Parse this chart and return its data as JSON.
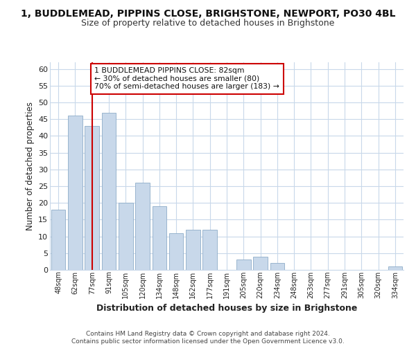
{
  "title": "1, BUDDLEMEAD, PIPPINS CLOSE, BRIGHSTONE, NEWPORT, PO30 4BL",
  "subtitle": "Size of property relative to detached houses in Brighstone",
  "xlabel": "Distribution of detached houses by size in Brighstone",
  "ylabel": "Number of detached properties",
  "bar_color": "#c8d8ea",
  "bar_edgecolor": "#8eacc8",
  "grid_color": "#c8d8ea",
  "bins": [
    "48sqm",
    "62sqm",
    "77sqm",
    "91sqm",
    "105sqm",
    "120sqm",
    "134sqm",
    "148sqm",
    "162sqm",
    "177sqm",
    "191sqm",
    "205sqm",
    "220sqm",
    "234sqm",
    "248sqm",
    "263sqm",
    "277sqm",
    "291sqm",
    "305sqm",
    "320sqm",
    "334sqm"
  ],
  "values": [
    18,
    46,
    43,
    47,
    20,
    26,
    19,
    11,
    12,
    12,
    0,
    3,
    4,
    2,
    0,
    0,
    0,
    0,
    0,
    0,
    1
  ],
  "vline_x": 2,
  "vline_color": "#cc0000",
  "annotation_text": "1 BUDDLEMEAD PIPPINS CLOSE: 82sqm\n← 30% of detached houses are smaller (80)\n70% of semi-detached houses are larger (183) →",
  "annotation_box_edgecolor": "#cc0000",
  "annotation_box_facecolor": "#ffffff",
  "ylim": [
    0,
    62
  ],
  "yticks": [
    0,
    5,
    10,
    15,
    20,
    25,
    30,
    35,
    40,
    45,
    50,
    55,
    60
  ],
  "footer": "Contains HM Land Registry data © Crown copyright and database right 2024.\nContains public sector information licensed under the Open Government Licence v3.0.",
  "background_color": "#ffffff",
  "title_fontsize": 10,
  "subtitle_fontsize": 9
}
